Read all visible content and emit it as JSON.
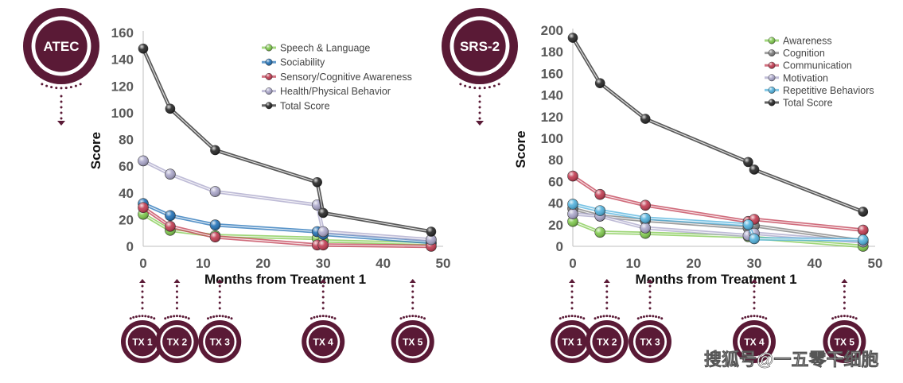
{
  "colors": {
    "badge": "#5a1a36",
    "axis": "#bfbfbf"
  },
  "watermark": "搜狐号@一五零干细胞",
  "chart_data": [
    {
      "id": "atec",
      "type": "line",
      "badge": "ATEC",
      "xlabel": "Months from Treatment 1",
      "ylabel": "Score",
      "xlim": [
        0,
        50
      ],
      "ylim": [
        0,
        160
      ],
      "xticks": [
        0,
        10,
        20,
        30,
        40,
        50
      ],
      "yticks": [
        0,
        20,
        40,
        60,
        80,
        100,
        120,
        140,
        160
      ],
      "grid": false,
      "legend_position": "top-right",
      "x": [
        0,
        4.5,
        12,
        29,
        30,
        48
      ],
      "series": [
        {
          "name": "Speech & Language",
          "color": "#7dc84a",
          "values": [
            24,
            12,
            8,
            6,
            4,
            2
          ]
        },
        {
          "name": "Sociability",
          "color": "#1f6fb5",
          "values": [
            32,
            23,
            16,
            11,
            9,
            3
          ]
        },
        {
          "name": "Sensory/Cognitive Awareness",
          "color": "#c0394f",
          "values": [
            29,
            15,
            7,
            1,
            1,
            0
          ]
        },
        {
          "name": "Health/Physical Behavior",
          "color": "#a8a4c8",
          "values": [
            64,
            54,
            41,
            31,
            11,
            5
          ]
        },
        {
          "name": "Total Score",
          "color": "#222222",
          "values": [
            148,
            103,
            72,
            48,
            25,
            11
          ]
        }
      ],
      "treatments": [
        {
          "label": "TX 1",
          "month": 0
        },
        {
          "label": "TX 2",
          "month": 5.5
        },
        {
          "label": "TX 3",
          "month": 12.5
        },
        {
          "label": "TX 4",
          "month": 30
        },
        {
          "label": "TX 5",
          "month": 44
        }
      ]
    },
    {
      "id": "srs2",
      "type": "line",
      "badge": "SRS-2",
      "xlabel": "Months from Treatment 1",
      "ylabel": "Score",
      "xlim": [
        0,
        50
      ],
      "ylim": [
        0,
        200
      ],
      "xticks": [
        0,
        10,
        20,
        30,
        40,
        50
      ],
      "yticks": [
        0,
        20,
        40,
        60,
        80,
        100,
        120,
        140,
        160,
        180,
        200
      ],
      "grid": false,
      "legend_position": "top-right",
      "x": [
        0,
        4.5,
        12,
        29,
        30,
        48
      ],
      "series": [
        {
          "name": "Awareness",
          "color": "#7dc84a",
          "values": [
            23,
            13,
            12,
            9,
            8,
            0
          ]
        },
        {
          "name": "Cognition",
          "color": "#7a7a7a",
          "values": [
            35,
            28,
            24,
            17,
            19,
            5
          ]
        },
        {
          "name": "Communication",
          "color": "#c0394f",
          "values": [
            65,
            48,
            38,
            23,
            25,
            15
          ]
        },
        {
          "name": "Motivation",
          "color": "#a8a4c8",
          "values": [
            30,
            28,
            17,
            10,
            12,
            4
          ]
        },
        {
          "name": "Repetitive Behaviors",
          "color": "#4fb0dc",
          "values": [
            39,
            33,
            26,
            20,
            7,
            6
          ]
        },
        {
          "name": "Total Score",
          "color": "#222222",
          "values": [
            193,
            151,
            118,
            78,
            71,
            32
          ]
        }
      ],
      "treatments": [
        {
          "label": "TX 1",
          "month": 0
        },
        {
          "label": "TX 2",
          "month": 5.5
        },
        {
          "label": "TX 3",
          "month": 12.5
        },
        {
          "label": "TX 4",
          "month": 30
        },
        {
          "label": "TX 5",
          "month": 44
        }
      ]
    }
  ]
}
